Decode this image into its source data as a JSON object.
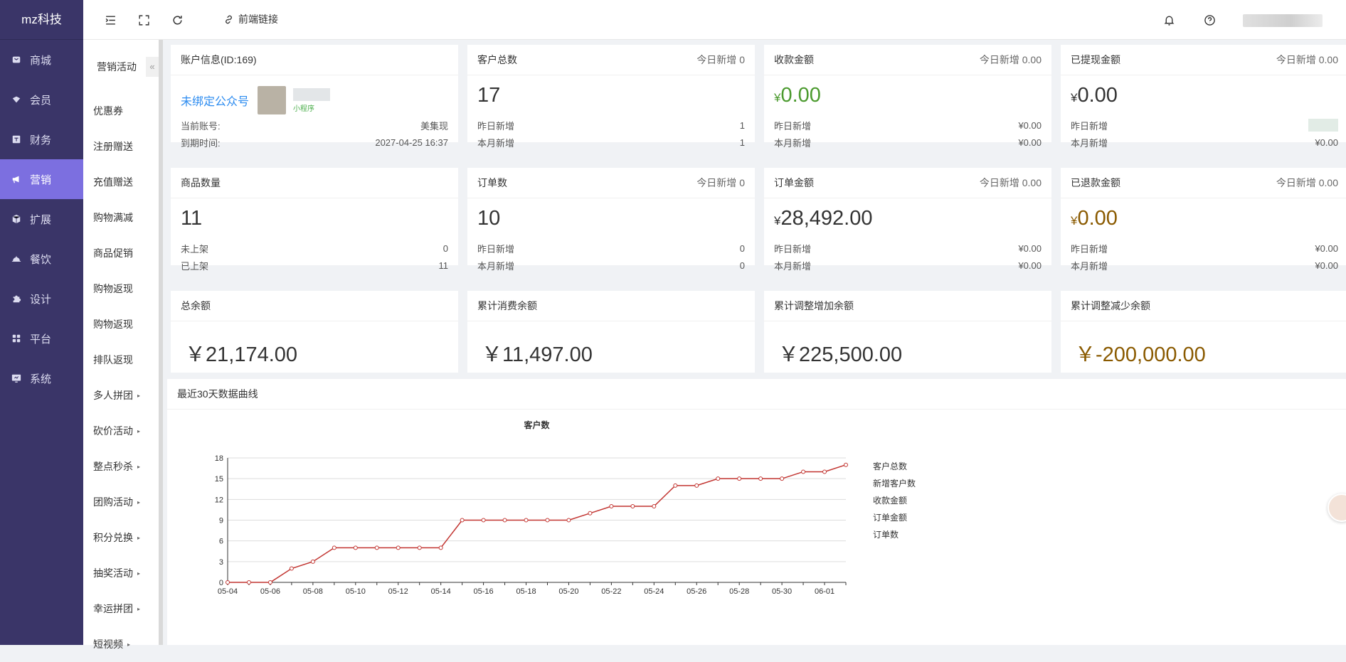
{
  "app": {
    "logo": "mz科技"
  },
  "sidebar": {
    "items": [
      {
        "label": "商城",
        "icon": "shop-icon"
      },
      {
        "label": "会员",
        "icon": "member-icon"
      },
      {
        "label": "财务",
        "icon": "finance-icon"
      },
      {
        "label": "营销",
        "icon": "megaphone-icon",
        "active": true
      },
      {
        "label": "扩展",
        "icon": "cube-icon"
      },
      {
        "label": "餐饮",
        "icon": "dish-icon"
      },
      {
        "label": "设计",
        "icon": "puzzle-icon"
      },
      {
        "label": "平台",
        "icon": "grid-icon"
      },
      {
        "label": "系统",
        "icon": "monitor-icon"
      }
    ]
  },
  "subnav": {
    "title": "营销活动",
    "collapse": "«",
    "items": [
      {
        "label": "优惠券",
        "caret": ""
      },
      {
        "label": "注册赠送",
        "caret": ""
      },
      {
        "label": "充值赠送",
        "caret": ""
      },
      {
        "label": "购物满减",
        "caret": ""
      },
      {
        "label": "商品促销",
        "caret": ""
      },
      {
        "label": "购物返现",
        "caret": ""
      },
      {
        "label": "购物返现",
        "caret": ""
      },
      {
        "label": "排队返现",
        "caret": ""
      },
      {
        "label": "多人拼团",
        "caret": "▸"
      },
      {
        "label": "砍价活动",
        "caret": "▸"
      },
      {
        "label": "整点秒杀",
        "caret": "▸"
      },
      {
        "label": "团购活动",
        "caret": "▸"
      },
      {
        "label": "积分兑换",
        "caret": "▸"
      },
      {
        "label": "抽奖活动",
        "caret": "▸"
      },
      {
        "label": "幸运拼团",
        "caret": "▸"
      },
      {
        "label": "短视频",
        "caret": "▸"
      }
    ]
  },
  "topbar": {
    "frontend_link": "前端链接",
    "more": "⋮"
  },
  "account": {
    "title": "账户信息(ID:169)",
    "bind": "未绑定公众号",
    "mini_tag": "小程序",
    "acc_label": "当前账号:",
    "acc_value": "美集现",
    "exp_label": "到期时间:",
    "exp_value": "2027-04-25 16:37"
  },
  "stats": {
    "customers": {
      "title": "客户总数",
      "today": "今日新增 0",
      "value": "17",
      "r1_label": "昨日新增",
      "r1_value": "1",
      "r2_label": "本月新增",
      "r2_value": "1"
    },
    "received": {
      "title": "收款金额",
      "today": "今日新增 0.00",
      "currency": "¥",
      "value": "0.00",
      "r1_label": "昨日新增",
      "r1_value": "¥0.00",
      "r2_label": "本月新增",
      "r2_value": "¥0.00"
    },
    "withdrawn": {
      "title": "已提现金额",
      "today": "今日新增 0.00",
      "currency": "¥",
      "value": "0.00",
      "r1_label": "昨日新增",
      "r2_label": "本月新增",
      "r2_value": "¥0.00"
    },
    "products": {
      "title": "商品数量",
      "value": "11",
      "r1_label": "未上架",
      "r1_value": "0",
      "r2_label": "已上架",
      "r2_value": "11"
    },
    "orders": {
      "title": "订单数",
      "today": "今日新增 0",
      "value": "10",
      "r1_label": "昨日新增",
      "r1_value": "0",
      "r2_label": "本月新增",
      "r2_value": "0"
    },
    "order_amount": {
      "title": "订单金额",
      "today": "今日新增 0.00",
      "currency": "¥",
      "value": "28,492.00",
      "r1_label": "昨日新增",
      "r1_value": "¥0.00",
      "r2_label": "本月新增",
      "r2_value": "¥0.00"
    },
    "refunded": {
      "title": "已退款金额",
      "today": "今日新增 0.00",
      "currency": "¥",
      "value": "0.00",
      "r1_label": "昨日新增",
      "r1_value": "¥0.00",
      "r2_label": "本月新增",
      "r2_value": "¥0.00"
    },
    "total_balance": {
      "title": "总余额",
      "value": "￥21,174.00"
    },
    "consumed_balance": {
      "title": "累计消费余额",
      "value": "￥11,497.00"
    },
    "adjust_inc": {
      "title": "累计调整增加余额",
      "value": "￥225,500.00"
    },
    "adjust_dec": {
      "title": "累计调整减少余额",
      "value": "￥-200,000.00"
    }
  },
  "chart_section": {
    "title": "最近30天数据曲线"
  },
  "colors": {
    "sidebar": "#3a3568",
    "active": "#7c6fe0",
    "line": "#c23531",
    "money_green": "#4b9a2e",
    "money_brown": "#8a5a00"
  },
  "chart_data": {
    "type": "line",
    "title": "客户数",
    "x": [
      "05-04",
      "05-05",
      "05-06",
      "05-07",
      "05-08",
      "05-09",
      "05-10",
      "05-11",
      "05-12",
      "05-13",
      "05-14",
      "05-15",
      "05-16",
      "05-17",
      "05-18",
      "05-19",
      "05-20",
      "05-21",
      "05-22",
      "05-23",
      "05-24",
      "05-25",
      "05-26",
      "05-27",
      "05-28",
      "05-29",
      "05-30",
      "05-31",
      "06-01",
      "06-02"
    ],
    "x_tick_labels": [
      "05-04",
      "05-06",
      "05-08",
      "05-10",
      "05-12",
      "05-14",
      "05-16",
      "05-18",
      "05-20",
      "05-22",
      "05-24",
      "05-26",
      "05-28",
      "05-30",
      "06-01"
    ],
    "series": [
      {
        "name": "客户总数",
        "values": [
          0,
          0,
          0,
          2,
          3,
          5,
          5,
          5,
          5,
          5,
          5,
          9,
          9,
          9,
          9,
          9,
          9,
          10,
          11,
          11,
          11,
          14,
          14,
          15,
          15,
          15,
          15,
          16,
          16,
          17
        ]
      }
    ],
    "legend": [
      "客户总数",
      "新增客户数",
      "收款金额",
      "订单金额",
      "订单数"
    ],
    "legend_position": "right",
    "ylim": [
      0,
      18
    ],
    "yticks": [
      0,
      3,
      6,
      9,
      12,
      15,
      18
    ],
    "grid": true
  }
}
